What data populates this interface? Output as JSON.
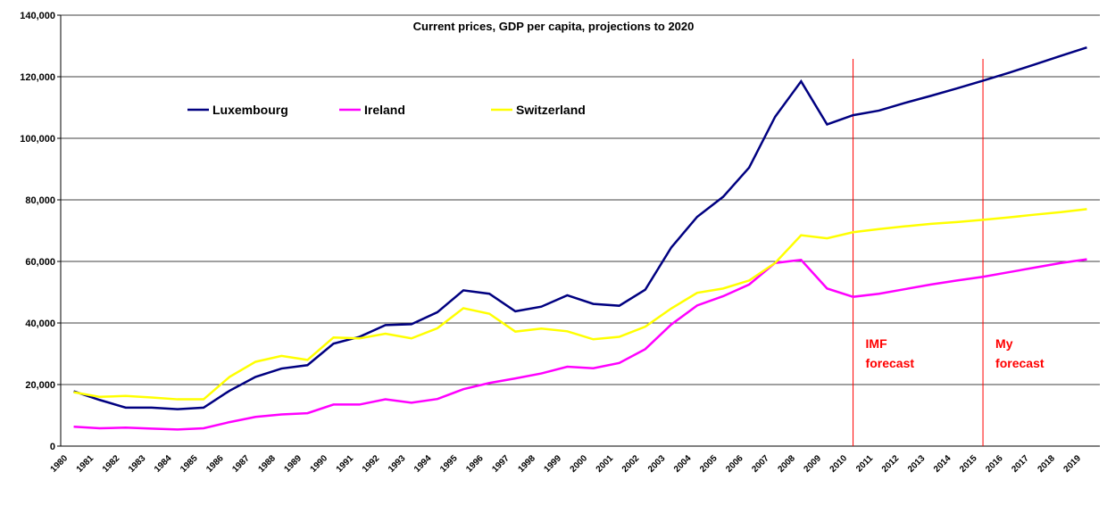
{
  "chart_data": {
    "type": "line",
    "title": "Current prices, GDP per capita, projections to 2020",
    "categories": [
      "1980",
      "1981",
      "1982",
      "1983",
      "1984",
      "1985",
      "1986",
      "1987",
      "1988",
      "1989",
      "1990",
      "1991",
      "1992",
      "1993",
      "1994",
      "1995",
      "1996",
      "1997",
      "1998",
      "1999",
      "2000",
      "2001",
      "2002",
      "2003",
      "2004",
      "2005",
      "2006",
      "2007",
      "2008",
      "2009",
      "2010",
      "2011",
      "2012",
      "2013",
      "2014",
      "2015",
      "2016",
      "2017",
      "2018",
      "2019"
    ],
    "series": [
      {
        "name": "Luxembourg",
        "color": "#000080",
        "values": [
          17800,
          15000,
          12500,
          12500,
          12000,
          12500,
          18000,
          22500,
          25200,
          26300,
          33300,
          35500,
          39300,
          39600,
          43500,
          50600,
          49500,
          43800,
          45300,
          49000,
          46200,
          45600,
          50800,
          64500,
          74500,
          81000,
          90500,
          107000,
          118500,
          104500,
          107500,
          109000,
          111500,
          113800,
          116200,
          118700,
          121300,
          124000,
          126800,
          129500
        ]
      },
      {
        "name": "Ireland",
        "color": "#ff00ff",
        "values": [
          6300,
          5800,
          6000,
          5700,
          5400,
          5800,
          7800,
          9500,
          10300,
          10700,
          13500,
          13500,
          15200,
          14100,
          15300,
          18500,
          20500,
          22000,
          23600,
          25800,
          25300,
          27000,
          31500,
          39500,
          45700,
          48700,
          52500,
          59500,
          60500,
          51200,
          48500,
          49500,
          51000,
          52500,
          53800,
          55000,
          56500,
          58000,
          59500,
          60700
        ]
      },
      {
        "name": "Switzerland",
        "color": "#ffff00",
        "values": [
          17500,
          16000,
          16300,
          15800,
          15200,
          15200,
          22500,
          27400,
          29300,
          28000,
          35300,
          35000,
          36500,
          35000,
          38300,
          44800,
          43000,
          37200,
          38200,
          37300,
          34700,
          35500,
          38800,
          44700,
          49800,
          51200,
          53800,
          59500,
          68500,
          67500,
          69500,
          70500,
          71400,
          72200,
          72800,
          73500,
          74300,
          75200,
          76000,
          77000
        ]
      }
    ],
    "ylim": [
      0,
      140000
    ],
    "yticks": [
      0,
      {
        "value": 20000,
        "label": "20,000"
      },
      {
        "value": 40000,
        "label": "40,000"
      },
      {
        "value": 60000,
        "label": "60,000"
      },
      {
        "value": 80000,
        "label": "80,000"
      },
      {
        "value": 100000,
        "label": "100,000"
      },
      {
        "value": 120000,
        "label": "120,000"
      },
      {
        "value": 140000,
        "label": "140,000"
      }
    ],
    "grid": true,
    "annotations": [
      {
        "text": [
          "IMF",
          "forecast"
        ],
        "x": "2010",
        "color": "#ff0000"
      },
      {
        "text": [
          "My",
          "forecast"
        ],
        "x": "2015",
        "color": "#ff0000"
      }
    ]
  }
}
